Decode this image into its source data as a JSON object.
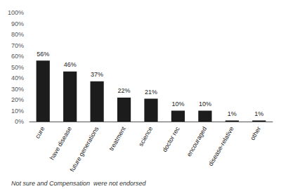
{
  "chart_data": {
    "type": "bar",
    "categories": [
      "cure",
      "have disease",
      "future generations",
      "treatment",
      "science",
      "doctor rec",
      "encouraged",
      "disease-relative",
      "other"
    ],
    "values": [
      56,
      46,
      37,
      22,
      21,
      10,
      10,
      1,
      1
    ],
    "value_labels": [
      "56%",
      "46%",
      "37%",
      "22%",
      "21%",
      "10%",
      "10%",
      "1%",
      "1%"
    ],
    "data_labels": true,
    "color": "#1c1c1c",
    "ylim": [
      0,
      100
    ],
    "yticks": [
      {
        "value": 0,
        "label": "0%"
      },
      {
        "value": 10,
        "label": "10%"
      },
      {
        "value": 20,
        "label": "20%"
      },
      {
        "value": 30,
        "label": "30%"
      },
      {
        "value": 40,
        "label": "40%"
      },
      {
        "value": 50,
        "label": "50%"
      },
      {
        "value": 60,
        "label": "60%"
      },
      {
        "value": 70,
        "label": "70%"
      },
      {
        "value": 80,
        "label": "80%"
      },
      {
        "value": 90,
        "label": "90%"
      },
      {
        "value": 100,
        "label": "100%"
      }
    ],
    "grid": false,
    "annotations": [
      "Not sure and Compensation  were not endorsed"
    ]
  }
}
